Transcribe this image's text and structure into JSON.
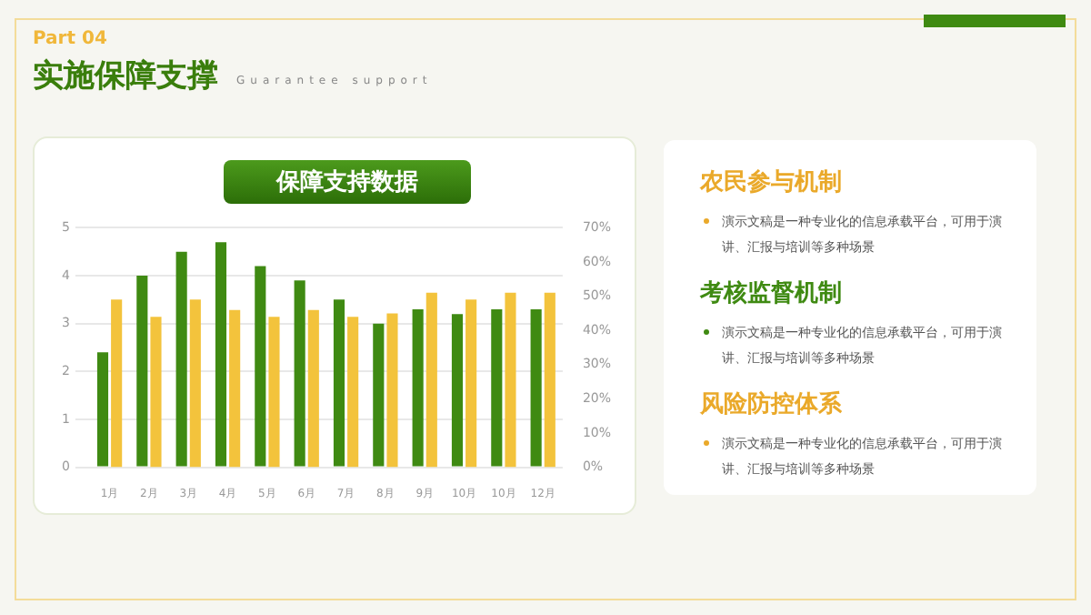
{
  "chart_data": [
    {
      "type": "bar",
      "title": "保障支持数据",
      "annotations": [
        "Part  04",
        "实施保障支撑",
        "Guarantee support"
      ],
      "categories": [
        "1月",
        "2月",
        "3月",
        "4月",
        "5月",
        "6月",
        "7月",
        "8月",
        "9月",
        "10月",
        "10月",
        "12月"
      ],
      "series": [
        {
          "color": "#3f8a12",
          "values": [
            2.4,
            4.0,
            4.5,
            4.7,
            4.2,
            3.9,
            3.5,
            3.0,
            3.3,
            3.2,
            3.3,
            3.3
          ]
        },
        {
          "color": "#f3c33c",
          "axis": "y2",
          "values": [
            49,
            44,
            49,
            46,
            44,
            46,
            44,
            45,
            51,
            49,
            51,
            51
          ]
        }
      ],
      "ylim": [
        0,
        5
      ],
      "yticks": [
        0,
        1,
        2,
        3,
        4,
        5
      ],
      "y2lim": [
        0,
        70
      ],
      "y2ticks": [
        {
          "value": 0,
          "label": "0%"
        },
        {
          "value": 10,
          "label": "10%"
        },
        {
          "value": 20,
          "label": "20%"
        },
        {
          "value": 30,
          "label": "30%"
        },
        {
          "value": 40,
          "label": "40%"
        },
        {
          "value": 50,
          "label": "50%"
        },
        {
          "value": 60,
          "label": "60%"
        },
        {
          "value": 70,
          "label": "70%"
        }
      ],
      "grid": "y",
      "legend": false
    },
    {
      "type": "other",
      "annotations": [
        "农民参与机制",
        "演示文稿是一种专业化的信息承载平台，可用于演讲、汇报与培训等多种场景",
        "考核监督机制",
        "演示文稿是一种专业化的信息承载平台，可用于演讲、汇报与培训等多种场景",
        "风险防控体系",
        "演示文稿是一种专业化的信息承载平台，可用于演讲、汇报与培训等多种场景"
      ]
    }
  ]
}
